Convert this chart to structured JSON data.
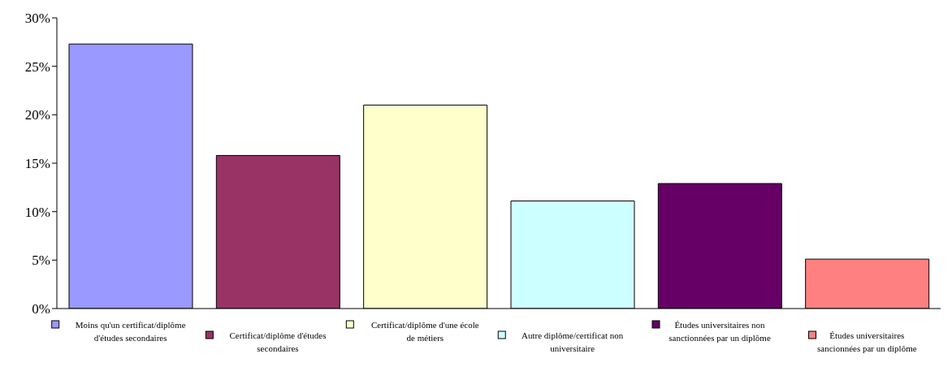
{
  "chart_data": {
    "type": "bar",
    "categories": [
      "Moins qu'un certificat/diplôme d'études secondaires",
      "Certificat/diplôme d'études secondaires",
      "Certificat/diplôme d'une école de métiers",
      "Autre diplôme/certificat non universitaire",
      "Études universitaires non sanctionnées par un diplôme",
      "Études universitaires sancionnées par un diplôme"
    ],
    "values": [
      27.3,
      15.8,
      21.0,
      11.1,
      12.9,
      5.1
    ],
    "colors": [
      "#9999ff",
      "#993366",
      "#ffffcc",
      "#ccffff",
      "#660066",
      "#ff8080"
    ],
    "ylim": [
      0,
      30
    ],
    "yticks": [
      {
        "value": 0,
        "label": "0%"
      },
      {
        "value": 5,
        "label": "5%"
      },
      {
        "value": 10,
        "label": "10%"
      },
      {
        "value": 15,
        "label": "15%"
      },
      {
        "value": 20,
        "label": "20%"
      },
      {
        "value": 25,
        "label": "25%"
      },
      {
        "value": 30,
        "label": "30%"
      }
    ],
    "grid": false
  }
}
